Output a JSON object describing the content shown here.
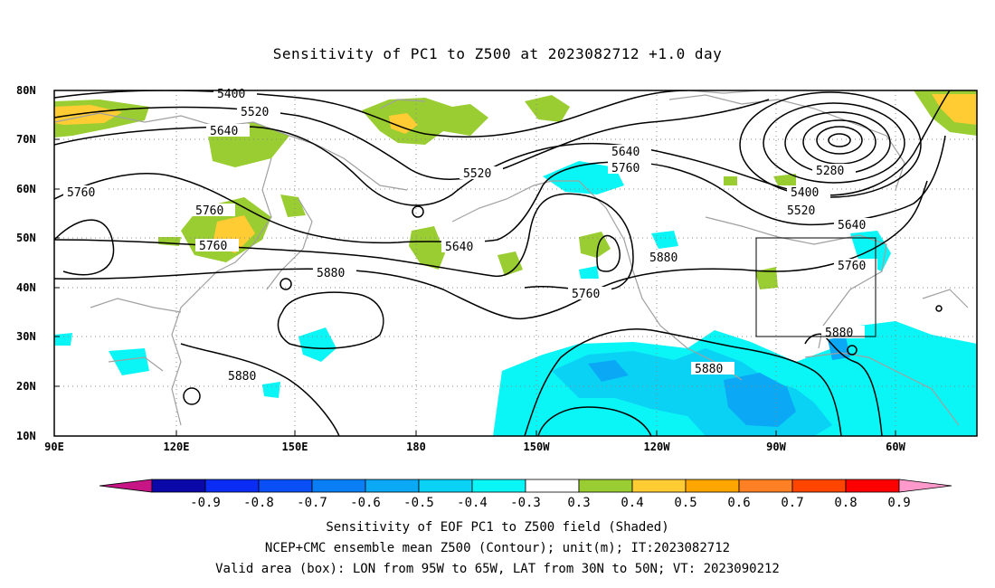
{
  "title": "Sensitivity of PC1 to Z500 at 2023082712 +1.0 day",
  "lat_labels": [
    "80N",
    "70N",
    "60N",
    "50N",
    "40N",
    "30N",
    "20N",
    "10N"
  ],
  "lon_labels": [
    "90E",
    "120E",
    "150E",
    "180",
    "150W",
    "120W",
    "90W",
    "60W"
  ],
  "contour_labels": {
    "c5400": "5400",
    "c5520a": "5520",
    "c5640a": "5640",
    "c5760a": "5760",
    "c5760b": "5760",
    "c5760c": "5760",
    "c5880a": "5880",
    "c5880b": "5880",
    "c5520b": "5520",
    "c5640b": "5640",
    "c5640c": "5640",
    "c5760d": "5760",
    "c5760e": "5760",
    "c5880c": "5880",
    "c5880d": "5880",
    "c5280": "5280",
    "c5400b": "5400",
    "c5520c": "5520",
    "c5640d": "5640",
    "c5760f": "5760",
    "c5880e": "5880"
  },
  "colorbar": {
    "labels": [
      "-0.9",
      "-0.8",
      "-0.7",
      "-0.6",
      "-0.5",
      "-0.4",
      "-0.3",
      "0.3",
      "0.4",
      "0.5",
      "0.6",
      "0.7",
      "0.8",
      "0.9"
    ],
    "colors": [
      "#0a08a8",
      "#0a2cf5",
      "#0a4ef5",
      "#0a7ef5",
      "#0aa8f5",
      "#0ad2f5",
      "#0af5f5",
      "#ffffff",
      "#9acd32",
      "#ffcc33",
      "#ffa500",
      "#ff7f24",
      "#ff4500",
      "#ff0000"
    ],
    "low_end": "#c71585",
    "high_end": "#ff99cc"
  },
  "captions": {
    "line1": "Sensitivity of EOF PC1 to Z500 field (Shaded)",
    "line2": "NCEP+CMC ensemble mean Z500 (Contour); unit(m); IT:2023082712",
    "line3": "Valid area (box): LON from 95W to 65W, LAT from 30N to 50N; VT: 2023090212"
  },
  "colors": {
    "frame": "#000000",
    "grid": "#888888",
    "coast": "#a0a0a0",
    "contour": "#000000",
    "green": "#9acd32",
    "orange": "#ffcc33",
    "cyan": "#0af5f5",
    "lightblue": "#0ad2f5",
    "blue": "#0aa8f5"
  }
}
